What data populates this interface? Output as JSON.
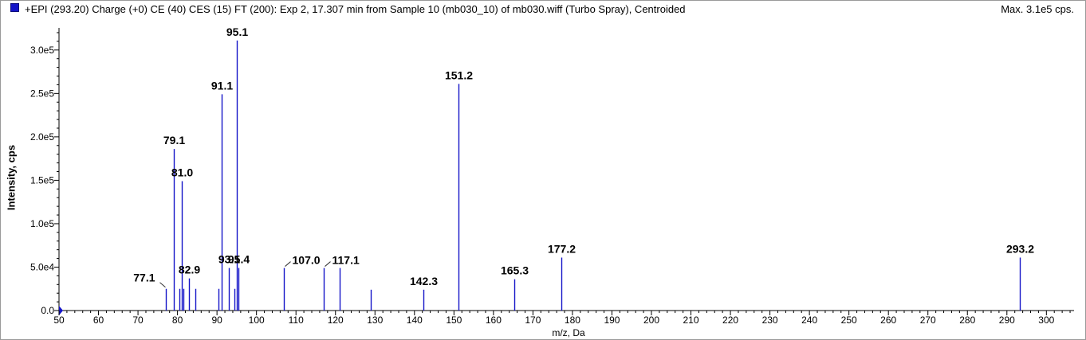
{
  "header": {
    "title": "+EPI (293.20) Charge (+0) CE (40) CES (15) FT (200): Exp 2, 17.307 min from Sample 10 (mb030_10) of mb030.wiff (Turbo Spray), Centroided",
    "max_label": "Max. 3.1e5 cps."
  },
  "colors": {
    "series": "#1515c8",
    "swatch_border": "#0a0a7a",
    "axis": "#000000",
    "leader": "#333333"
  },
  "chart_data": {
    "type": "bar",
    "xlabel": "m/z, Da",
    "ylabel": "Intensity, cps",
    "xlim": [
      50,
      307
    ],
    "ylim": [
      0,
      320000
    ],
    "x_ticks": [
      50,
      60,
      70,
      80,
      90,
      100,
      110,
      120,
      130,
      140,
      150,
      160,
      170,
      180,
      190,
      200,
      210,
      220,
      230,
      240,
      250,
      260,
      270,
      280,
      290,
      300
    ],
    "x_minor_step": 2,
    "y_ticks": [
      {
        "value": 0,
        "label": "0.0"
      },
      {
        "value": 50000,
        "label": "5.0e4"
      },
      {
        "value": 100000,
        "label": "1.0e5"
      },
      {
        "value": 150000,
        "label": "1.5e5"
      },
      {
        "value": 200000,
        "label": "2.0e5"
      },
      {
        "value": 250000,
        "label": "2.5e5"
      },
      {
        "value": 300000,
        "label": "3.0e5"
      }
    ],
    "peaks": [
      {
        "mz": 77.1,
        "intensity": 25000,
        "label": "77.1",
        "label_side": "left"
      },
      {
        "mz": 79.1,
        "intensity": 186000,
        "label": "79.1"
      },
      {
        "mz": 80.5,
        "intensity": 25000
      },
      {
        "mz": 81.0,
        "intensity": 149000,
        "label": "81.0"
      },
      {
        "mz": 81.5,
        "intensity": 25000
      },
      {
        "mz": 82.9,
        "intensity": 37000,
        "label": "82.9"
      },
      {
        "mz": 84.5,
        "intensity": 25000
      },
      {
        "mz": 90.4,
        "intensity": 25000
      },
      {
        "mz": 91.1,
        "intensity": 249000,
        "label": "91.1"
      },
      {
        "mz": 93.1,
        "intensity": 49000,
        "label": "93.1"
      },
      {
        "mz": 94.5,
        "intensity": 25000
      },
      {
        "mz": 95.1,
        "intensity": 311000,
        "label": "95.1"
      },
      {
        "mz": 95.4,
        "intensity": 49000,
        "label": "95.4"
      },
      {
        "mz": 107.0,
        "intensity": 49000,
        "label": "107.0",
        "label_side": "right"
      },
      {
        "mz": 117.1,
        "intensity": 49000,
        "label": "117.1",
        "label_side": "right"
      },
      {
        "mz": 121.0,
        "intensity": 49000
      },
      {
        "mz": 129.0,
        "intensity": 24000
      },
      {
        "mz": 142.3,
        "intensity": 24000,
        "label": "142.3"
      },
      {
        "mz": 151.2,
        "intensity": 261000,
        "label": "151.2"
      },
      {
        "mz": 165.3,
        "intensity": 36000,
        "label": "165.3"
      },
      {
        "mz": 177.2,
        "intensity": 61000,
        "label": "177.2"
      },
      {
        "mz": 293.2,
        "intensity": 61000,
        "label": "293.2"
      }
    ]
  }
}
